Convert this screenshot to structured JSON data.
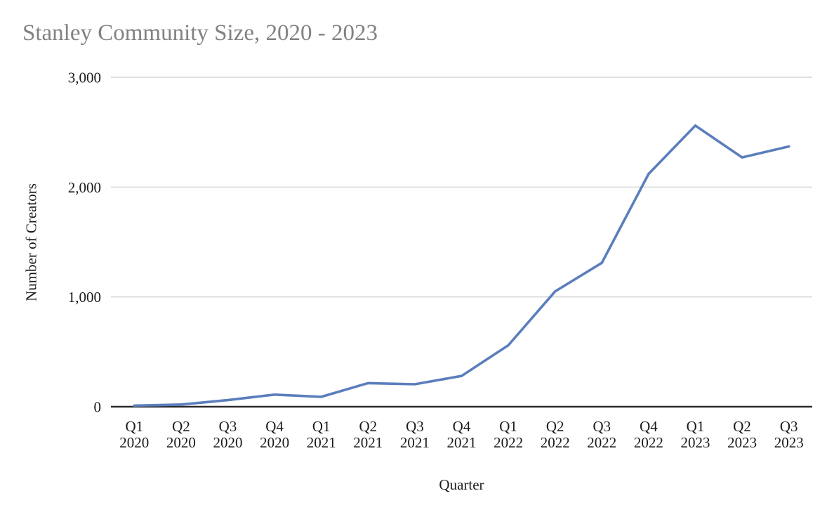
{
  "title": "Stanley Community Size, 2020 - 2023",
  "chart_data": {
    "type": "line",
    "title": "Stanley Community Size, 2020 - 2023",
    "xlabel": "Quarter",
    "ylabel": "Number of Creators",
    "categories": [
      "Q1 2020",
      "Q2 2020",
      "Q3 2020",
      "Q4 2020",
      "Q1 2021",
      "Q2 2021",
      "Q3 2021",
      "Q4 2021",
      "Q1 2022",
      "Q2 2022",
      "Q3 2022",
      "Q4 2022",
      "Q1 2023",
      "Q2 2023",
      "Q3 2023"
    ],
    "series": [
      {
        "name": "Number of Creators",
        "values": [
          10,
          20,
          60,
          110,
          90,
          215,
          205,
          280,
          560,
          1050,
          1310,
          2120,
          2560,
          2270,
          2370
        ]
      }
    ],
    "ylim": [
      0,
      3000
    ],
    "yticks": {
      "values": [
        0,
        1000,
        2000,
        3000
      ],
      "labels": [
        "0",
        "1,000",
        "2,000",
        "3,000"
      ]
    },
    "grid": "horizontal-only",
    "legend": "none",
    "colors": {
      "line": "#5b7ebc",
      "gridline": "#d4d4d4",
      "axis_line": "#2b2b2b",
      "title_text": "#828282",
      "tick_text": "#1a1a1a"
    }
  }
}
